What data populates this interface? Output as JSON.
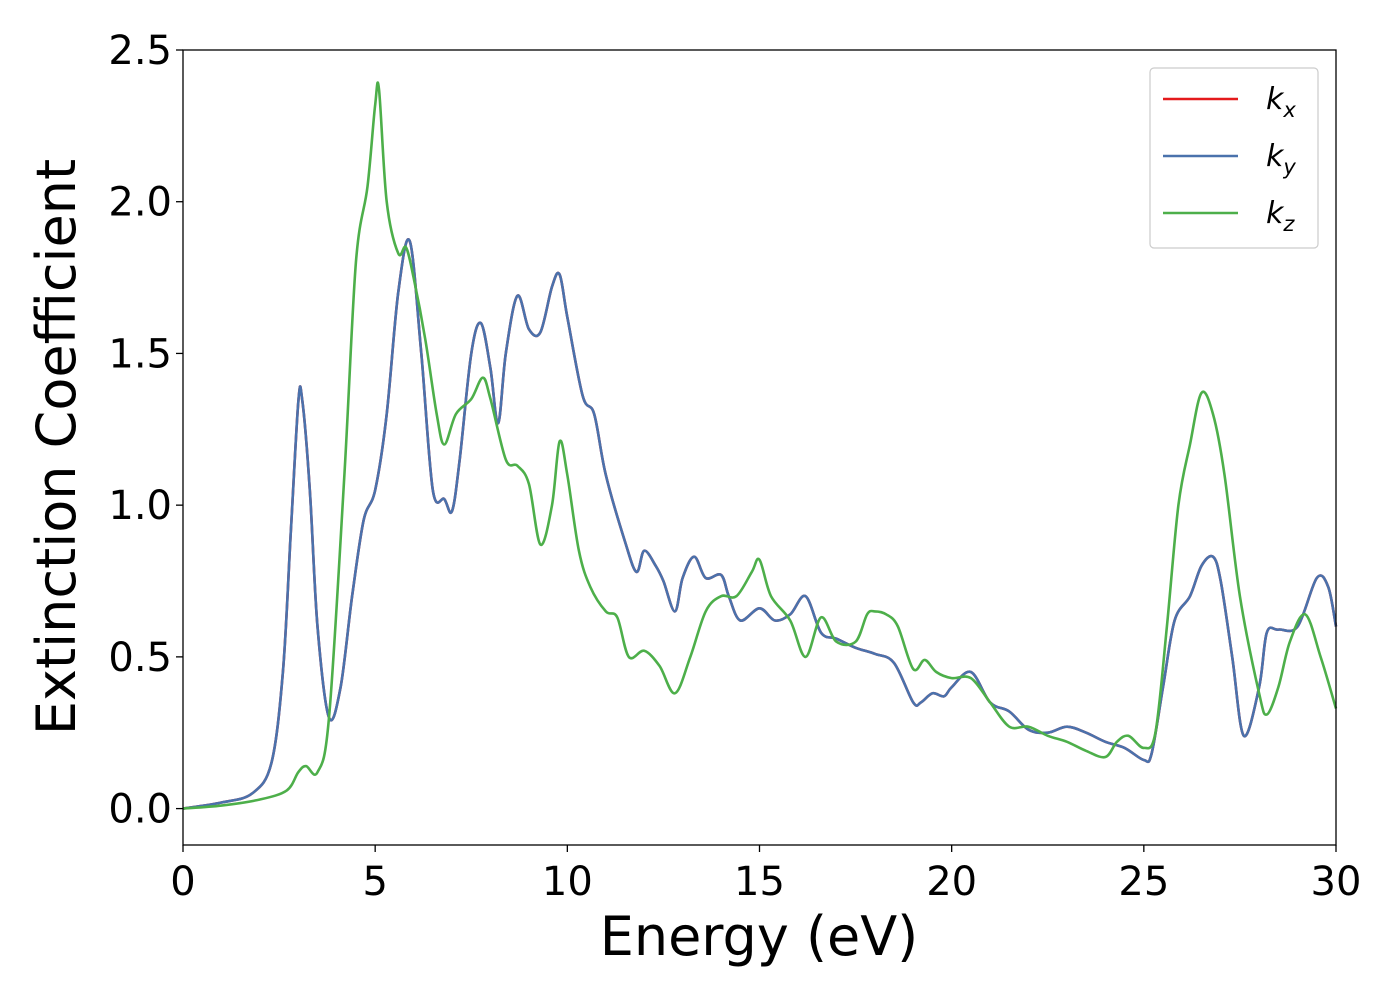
{
  "chart_data": {
    "type": "line",
    "xlabel": "Energy (eV)",
    "ylabel": "Extinction Coefficient",
    "xlim": [
      0,
      30
    ],
    "ylim": [
      -0.12,
      2.5
    ],
    "xticks": [
      0,
      5,
      10,
      15,
      20,
      25,
      30
    ],
    "xtick_labels": [
      "0",
      "5",
      "10",
      "15",
      "20",
      "25",
      "30"
    ],
    "yticks": [
      0.0,
      0.5,
      1.0,
      1.5,
      2.0,
      2.5
    ],
    "ytick_labels": [
      "0.0",
      "0.5",
      "1.0",
      "1.5",
      "2.0",
      "2.5"
    ],
    "grid": false,
    "legend_position": "top-right",
    "series": [
      {
        "name": "k_x",
        "label_base": "k",
        "label_sub": "x",
        "color": "#e41a1c",
        "x": [
          0,
          1,
          1.8,
          2.3,
          2.6,
          2.8,
          3.0,
          3.1,
          3.3,
          3.5,
          3.8,
          4.1,
          4.4,
          4.7,
          5.0,
          5.3,
          5.6,
          5.9,
          6.2,
          6.5,
          6.8,
          7.0,
          7.2,
          7.5,
          7.75,
          8.0,
          8.2,
          8.4,
          8.7,
          9.0,
          9.3,
          9.6,
          9.8,
          10.0,
          10.4,
          10.7,
          11.0,
          11.5,
          11.8,
          12.0,
          12.3,
          12.5,
          12.8,
          13.0,
          13.3,
          13.6,
          14.0,
          14.2,
          14.5,
          15.0,
          15.4,
          15.8,
          16.2,
          16.6,
          17.0,
          17.5,
          18.0,
          18.5,
          19.0,
          19.2,
          19.5,
          19.8,
          20.0,
          20.5,
          21.0,
          21.5,
          22.0,
          22.5,
          23.0,
          23.5,
          24.0,
          24.5,
          25.0,
          25.2,
          25.5,
          25.8,
          26.2,
          26.5,
          26.8,
          27.0,
          27.3,
          27.6,
          28.0,
          28.2,
          28.5,
          29.0,
          29.5,
          29.8,
          30.0
        ],
        "values": [
          0,
          0.02,
          0.05,
          0.15,
          0.45,
          0.9,
          1.34,
          1.35,
          1.05,
          0.6,
          0.3,
          0.4,
          0.7,
          0.95,
          1.05,
          1.3,
          1.7,
          1.87,
          1.5,
          1.05,
          1.02,
          0.98,
          1.15,
          1.5,
          1.6,
          1.45,
          1.27,
          1.5,
          1.69,
          1.58,
          1.57,
          1.72,
          1.76,
          1.62,
          1.36,
          1.3,
          1.1,
          0.88,
          0.78,
          0.85,
          0.8,
          0.75,
          0.65,
          0.76,
          0.83,
          0.76,
          0.77,
          0.7,
          0.62,
          0.66,
          0.62,
          0.64,
          0.7,
          0.58,
          0.56,
          0.53,
          0.51,
          0.48,
          0.35,
          0.35,
          0.38,
          0.37,
          0.4,
          0.45,
          0.35,
          0.32,
          0.26,
          0.25,
          0.27,
          0.25,
          0.22,
          0.2,
          0.16,
          0.18,
          0.4,
          0.62,
          0.7,
          0.8,
          0.83,
          0.75,
          0.5,
          0.24,
          0.4,
          0.58,
          0.59,
          0.6,
          0.76,
          0.73,
          0.6
        ]
      },
      {
        "name": "k_y",
        "label_base": "k",
        "label_sub": "y",
        "color": "#4a72ac",
        "x": [
          0,
          1,
          1.8,
          2.3,
          2.6,
          2.8,
          3.0,
          3.1,
          3.3,
          3.5,
          3.8,
          4.1,
          4.4,
          4.7,
          5.0,
          5.3,
          5.6,
          5.9,
          6.2,
          6.5,
          6.8,
          7.0,
          7.2,
          7.5,
          7.75,
          8.0,
          8.2,
          8.4,
          8.7,
          9.0,
          9.3,
          9.6,
          9.8,
          10.0,
          10.4,
          10.7,
          11.0,
          11.5,
          11.8,
          12.0,
          12.3,
          12.5,
          12.8,
          13.0,
          13.3,
          13.6,
          14.0,
          14.2,
          14.5,
          15.0,
          15.4,
          15.8,
          16.2,
          16.6,
          17.0,
          17.5,
          18.0,
          18.5,
          19.0,
          19.2,
          19.5,
          19.8,
          20.0,
          20.5,
          21.0,
          21.5,
          22.0,
          22.5,
          23.0,
          23.5,
          24.0,
          24.5,
          25.0,
          25.2,
          25.5,
          25.8,
          26.2,
          26.5,
          26.8,
          27.0,
          27.3,
          27.6,
          28.0,
          28.2,
          28.5,
          29.0,
          29.5,
          29.8,
          30.0
        ],
        "values": [
          0,
          0.02,
          0.05,
          0.15,
          0.45,
          0.9,
          1.34,
          1.35,
          1.05,
          0.6,
          0.3,
          0.4,
          0.7,
          0.95,
          1.05,
          1.3,
          1.7,
          1.87,
          1.5,
          1.05,
          1.02,
          0.98,
          1.15,
          1.5,
          1.6,
          1.45,
          1.27,
          1.5,
          1.69,
          1.58,
          1.57,
          1.72,
          1.76,
          1.62,
          1.36,
          1.3,
          1.1,
          0.88,
          0.78,
          0.85,
          0.8,
          0.75,
          0.65,
          0.76,
          0.83,
          0.76,
          0.77,
          0.7,
          0.62,
          0.66,
          0.62,
          0.64,
          0.7,
          0.58,
          0.56,
          0.53,
          0.51,
          0.48,
          0.35,
          0.35,
          0.38,
          0.37,
          0.4,
          0.45,
          0.35,
          0.32,
          0.26,
          0.25,
          0.27,
          0.25,
          0.22,
          0.2,
          0.16,
          0.18,
          0.4,
          0.62,
          0.7,
          0.8,
          0.83,
          0.75,
          0.5,
          0.24,
          0.4,
          0.58,
          0.59,
          0.6,
          0.76,
          0.73,
          0.6
        ]
      },
      {
        "name": "k_z",
        "label_base": "k",
        "label_sub": "z",
        "color": "#4daf4a",
        "x": [
          0,
          1,
          2.0,
          2.7,
          3.0,
          3.2,
          3.5,
          3.8,
          4.2,
          4.5,
          4.8,
          5.0,
          5.1,
          5.3,
          5.6,
          5.8,
          6.0,
          6.3,
          6.6,
          6.8,
          7.1,
          7.5,
          7.8,
          8.0,
          8.4,
          8.7,
          9.0,
          9.3,
          9.6,
          9.8,
          10.0,
          10.3,
          10.6,
          11.0,
          11.3,
          11.6,
          12.0,
          12.4,
          12.8,
          13.2,
          13.6,
          14.0,
          14.4,
          14.8,
          15.0,
          15.3,
          15.8,
          16.2,
          16.6,
          17.0,
          17.5,
          17.8,
          18.0,
          18.3,
          18.6,
          19.0,
          19.3,
          19.6,
          20.0,
          20.5,
          21.0,
          21.5,
          22.0,
          22.5,
          23.0,
          23.5,
          24.0,
          24.3,
          24.6,
          25.0,
          25.3,
          25.6,
          25.9,
          26.2,
          26.5,
          26.8,
          27.1,
          27.5,
          28.0,
          28.2,
          28.5,
          28.8,
          29.2,
          29.6,
          30.0
        ],
        "values": [
          0,
          0.01,
          0.03,
          0.06,
          0.12,
          0.14,
          0.12,
          0.3,
          1.1,
          1.8,
          2.05,
          2.32,
          2.37,
          2.0,
          1.83,
          1.85,
          1.75,
          1.55,
          1.3,
          1.2,
          1.3,
          1.35,
          1.42,
          1.35,
          1.15,
          1.13,
          1.07,
          0.87,
          1.0,
          1.21,
          1.1,
          0.85,
          0.73,
          0.65,
          0.63,
          0.5,
          0.52,
          0.47,
          0.38,
          0.5,
          0.65,
          0.7,
          0.7,
          0.78,
          0.82,
          0.7,
          0.62,
          0.5,
          0.63,
          0.55,
          0.55,
          0.64,
          0.65,
          0.64,
          0.6,
          0.46,
          0.49,
          0.45,
          0.43,
          0.43,
          0.35,
          0.27,
          0.27,
          0.24,
          0.22,
          0.19,
          0.17,
          0.22,
          0.24,
          0.2,
          0.25,
          0.6,
          1.0,
          1.2,
          1.37,
          1.3,
          1.1,
          0.7,
          0.38,
          0.31,
          0.4,
          0.55,
          0.64,
          0.5,
          0.33
        ]
      }
    ]
  }
}
